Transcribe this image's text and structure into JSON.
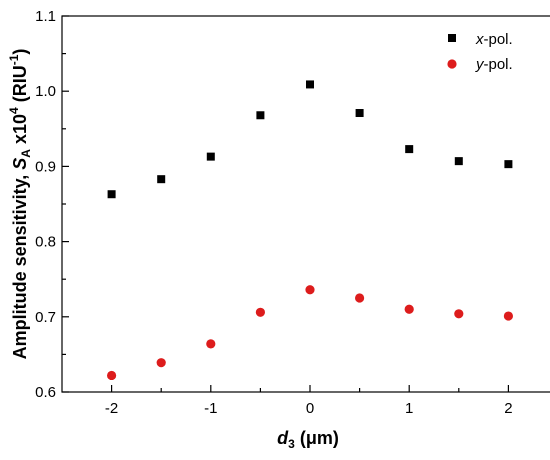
{
  "chart_data": {
    "type": "scatter",
    "x": [
      -2,
      -1.5,
      -1,
      -0.5,
      0,
      0.5,
      1,
      1.5,
      2
    ],
    "series": [
      {
        "name": "x-pol.",
        "marker": "square",
        "color": "#000000",
        "values": [
          0.863,
          0.883,
          0.913,
          0.968,
          1.009,
          0.971,
          0.923,
          0.907,
          0.903
        ]
      },
      {
        "name": "y-pol.",
        "marker": "circle",
        "color": "#dd1c1c",
        "values": [
          0.622,
          0.639,
          0.664,
          0.706,
          0.736,
          0.725,
          0.71,
          0.704,
          0.701
        ]
      }
    ],
    "xlim": [
      -2.5,
      2.5
    ],
    "ylim": [
      0.6,
      1.1
    ],
    "xticks": [
      -2,
      -1,
      0,
      1,
      2
    ],
    "xtick_labels": [
      "-2",
      "-1",
      "0",
      "1",
      "2"
    ],
    "yticks": [
      0.6,
      0.7,
      0.8,
      0.9,
      1.0,
      1.1
    ],
    "ytick_labels": [
      "0.6",
      "0.7",
      "0.8",
      "0.9",
      "1.0",
      "1.1"
    ],
    "xlabel": {
      "main": "d",
      "sub": "3",
      "unit": " (μm)"
    },
    "ylabel": {
      "prefix": "Amplitude sensitivity, ",
      "sym": "S",
      "sub": "A",
      "mid": " x10",
      "exp": "4",
      "unit": " (RIU",
      "unit_exp": "-1",
      "close": ")"
    },
    "legend": {
      "position": "top-right",
      "entries": [
        {
          "italic": "x",
          "text": "-pol."
        },
        {
          "italic": "y",
          "text": "-pol."
        }
      ]
    },
    "grid": false
  }
}
